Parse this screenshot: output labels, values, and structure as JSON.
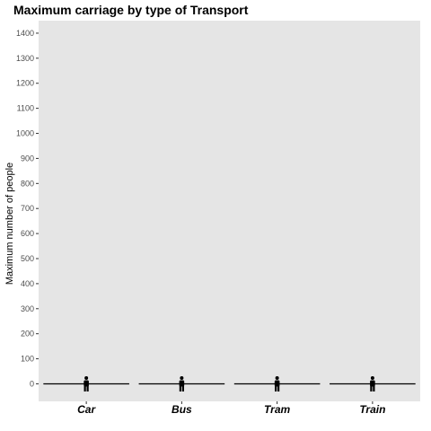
{
  "chart_data": {
    "type": "pictogram-bar",
    "title": "Maximum carriage by type of Transport",
    "xlabel": "",
    "ylabel": "Maximum number of people",
    "categories": [
      "Car",
      "Bus",
      "Tram",
      "Train"
    ],
    "values": [
      0,
      0,
      0,
      0
    ],
    "ylim": [
      -70,
      1450
    ],
    "yticks": [
      0,
      100,
      200,
      300,
      400,
      500,
      600,
      700,
      800,
      900,
      1000,
      1100,
      1200,
      1300,
      1400
    ],
    "grid": false,
    "legend": "none",
    "icon": "person-icon",
    "colors": {
      "panel": "#e5e5e5",
      "mark": "#000000",
      "tick_text": "#4d4d4d"
    }
  }
}
